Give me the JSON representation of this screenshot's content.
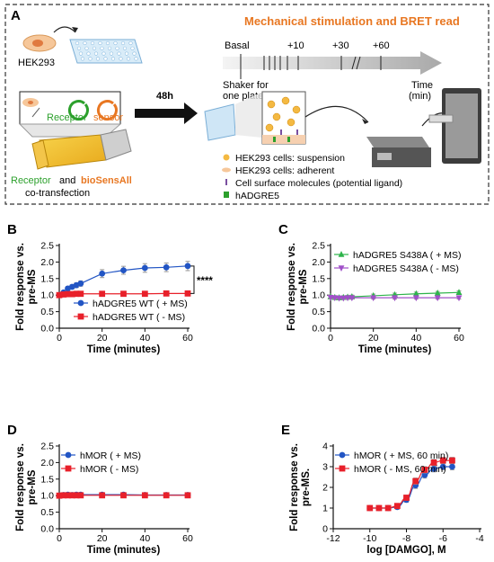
{
  "panel_a": {
    "label": "A",
    "title": "Mechanical stimulation and BRET read",
    "cells": "HEK293",
    "receptor": "Receptor",
    "sensor": "sensor",
    "transfection_1": "Receptor",
    "transfection_and": "and",
    "transfection_sensor": "bioSensAll",
    "transfection_2": "co-transfection",
    "incubation": "48h",
    "basal": "Basal",
    "t10": "+10",
    "t30": "+30",
    "t60": "+60",
    "time_label": "Time",
    "time_unit": "(min)",
    "shaker_1": "Shaker for",
    "shaker_2": "one plate",
    "legend": [
      "HEK293 cells: suspension",
      "HEK293 cells: adherent",
      "Cell surface molecules (potential ligand)",
      "hADGRE5"
    ],
    "colors": {
      "title": "#e87722",
      "receptor": "#2ca02c",
      "sensor": "#e87722"
    }
  },
  "chart_data": [
    {
      "id": "B",
      "label": "B",
      "type": "line",
      "ylabel_1": "Fold response vs.",
      "ylabel_2": "pre-MS",
      "xlabel": "Time (minutes)",
      "xlim": [
        0,
        60
      ],
      "ylim": [
        0,
        2.5
      ],
      "xticks": [
        "0",
        "20",
        "40",
        "60"
      ],
      "yticks": [
        "0.0",
        "0.5",
        "1.0",
        "1.5",
        "2.0",
        "2.5"
      ],
      "significance": "****",
      "legend_position": "bottom-right",
      "series": [
        {
          "name": "hADGRE5 WT ( + MS)",
          "color": "#2255c4",
          "marker": "circle",
          "x": [
            0,
            2,
            4,
            6,
            8,
            10,
            20,
            30,
            40,
            50,
            60
          ],
          "y": [
            1.0,
            1.08,
            1.2,
            1.25,
            1.3,
            1.35,
            1.65,
            1.75,
            1.82,
            1.84,
            1.88
          ],
          "err": [
            0.04,
            0.05,
            0.06,
            0.06,
            0.07,
            0.08,
            0.12,
            0.12,
            0.13,
            0.13,
            0.14
          ]
        },
        {
          "name": "hADGRE5 WT ( - MS)",
          "color": "#e8202a",
          "marker": "square",
          "x": [
            0,
            2,
            4,
            6,
            8,
            10,
            20,
            30,
            40,
            50,
            60
          ],
          "y": [
            1.0,
            1.02,
            1.03,
            1.03,
            1.04,
            1.04,
            1.04,
            1.04,
            1.04,
            1.05,
            1.05
          ],
          "err": [
            0.02,
            0.02,
            0.02,
            0.02,
            0.02,
            0.02,
            0.02,
            0.02,
            0.02,
            0.02,
            0.02
          ]
        }
      ]
    },
    {
      "id": "C",
      "label": "C",
      "type": "line",
      "ylabel_1": "Fold response vs.",
      "ylabel_2": "pre-MS",
      "xlabel": "Time (minutes)",
      "xlim": [
        0,
        60
      ],
      "ylim": [
        0,
        2.5
      ],
      "xticks": [
        "0",
        "20",
        "40",
        "60"
      ],
      "yticks": [
        "0.0",
        "0.5",
        "1.0",
        "1.5",
        "2.0",
        "2.5"
      ],
      "legend_position": "top-right",
      "series": [
        {
          "name": "hADGRE5 S438A ( + MS)",
          "color": "#2db34a",
          "marker": "triangle-up",
          "x": [
            0,
            2,
            4,
            6,
            8,
            10,
            20,
            30,
            40,
            50,
            60
          ],
          "y": [
            0.95,
            0.93,
            0.92,
            0.93,
            0.94,
            0.95,
            0.98,
            1.01,
            1.04,
            1.06,
            1.08
          ],
          "err": [
            0.05,
            0.05,
            0.05,
            0.05,
            0.05,
            0.05,
            0.05,
            0.05,
            0.05,
            0.05,
            0.05
          ]
        },
        {
          "name": "hADGRE5 S438A ( - MS)",
          "color": "#a050c8",
          "marker": "triangle-down",
          "x": [
            0,
            2,
            4,
            6,
            8,
            10,
            20,
            30,
            40,
            50,
            60
          ],
          "y": [
            0.93,
            0.92,
            0.91,
            0.91,
            0.92,
            0.92,
            0.92,
            0.92,
            0.92,
            0.92,
            0.92
          ],
          "err": [
            0.04,
            0.04,
            0.04,
            0.04,
            0.04,
            0.04,
            0.04,
            0.04,
            0.04,
            0.04,
            0.04
          ]
        }
      ]
    },
    {
      "id": "D",
      "label": "D",
      "type": "line",
      "ylabel_1": "Fold response vs.",
      "ylabel_2": "pre-MS",
      "xlabel": "Time (minutes)",
      "xlim": [
        0,
        60
      ],
      "ylim": [
        0,
        2.5
      ],
      "xticks": [
        "0",
        "20",
        "40",
        "60"
      ],
      "yticks": [
        "0.0",
        "0.5",
        "1.0",
        "1.5",
        "2.0",
        "2.5"
      ],
      "legend_position": "top-left",
      "series": [
        {
          "name": "hMOR ( + MS)",
          "color": "#2255c4",
          "marker": "circle",
          "x": [
            0,
            2,
            4,
            6,
            8,
            10,
            20,
            30,
            40,
            50,
            60
          ],
          "y": [
            1.0,
            1.02,
            1.03,
            1.02,
            1.03,
            1.03,
            1.03,
            1.03,
            1.02,
            1.02,
            1.02
          ],
          "err": [
            0.05,
            0.06,
            0.06,
            0.06,
            0.06,
            0.06,
            0.06,
            0.06,
            0.06,
            0.06,
            0.06
          ]
        },
        {
          "name": "hMOR ( - MS)",
          "color": "#e8202a",
          "marker": "square",
          "x": [
            0,
            2,
            4,
            6,
            8,
            10,
            20,
            30,
            40,
            50,
            60
          ],
          "y": [
            1.0,
            1.01,
            1.01,
            1.01,
            1.01,
            1.01,
            1.01,
            1.01,
            1.01,
            1.01,
            1.01
          ],
          "err": [
            0.04,
            0.04,
            0.04,
            0.04,
            0.04,
            0.04,
            0.04,
            0.04,
            0.04,
            0.04,
            0.04
          ]
        }
      ]
    },
    {
      "id": "E",
      "label": "E",
      "type": "line",
      "ylabel_1": "Fold response vs.",
      "ylabel_2": "pre-MS.",
      "xlabel": "log [DAMGO], M",
      "xlim": [
        -12,
        -4
      ],
      "ylim": [
        0,
        4
      ],
      "xticks": [
        "-12",
        "-10",
        "-8",
        "-6",
        "-4"
      ],
      "yticks": [
        "0",
        "1",
        "2",
        "3",
        "4"
      ],
      "legend_position": "top-left",
      "series": [
        {
          "name": "hMOR ( + MS, 60 min)",
          "color": "#2255c4",
          "marker": "circle",
          "x": [
            -10,
            -9.5,
            -9,
            -8.5,
            -8,
            -7.5,
            -7,
            -6.5,
            -6,
            -5.5
          ],
          "y": [
            1.0,
            1.0,
            1.0,
            1.05,
            1.4,
            2.1,
            2.6,
            2.9,
            3.0,
            3.0
          ],
          "err": [
            0.1,
            0.1,
            0.1,
            0.1,
            0.12,
            0.15,
            0.15,
            0.15,
            0.15,
            0.15
          ]
        },
        {
          "name": "hMOR ( - MS, 60 min)",
          "color": "#e8202a",
          "marker": "square",
          "x": [
            -10,
            -9.5,
            -9,
            -8.5,
            -8,
            -7.5,
            -7,
            -6.5,
            -6,
            -5.5
          ],
          "y": [
            1.0,
            1.0,
            1.0,
            1.1,
            1.5,
            2.3,
            2.85,
            3.2,
            3.3,
            3.3
          ],
          "err": [
            0.1,
            0.1,
            0.1,
            0.1,
            0.12,
            0.15,
            0.15,
            0.15,
            0.15,
            0.15
          ]
        }
      ]
    }
  ]
}
